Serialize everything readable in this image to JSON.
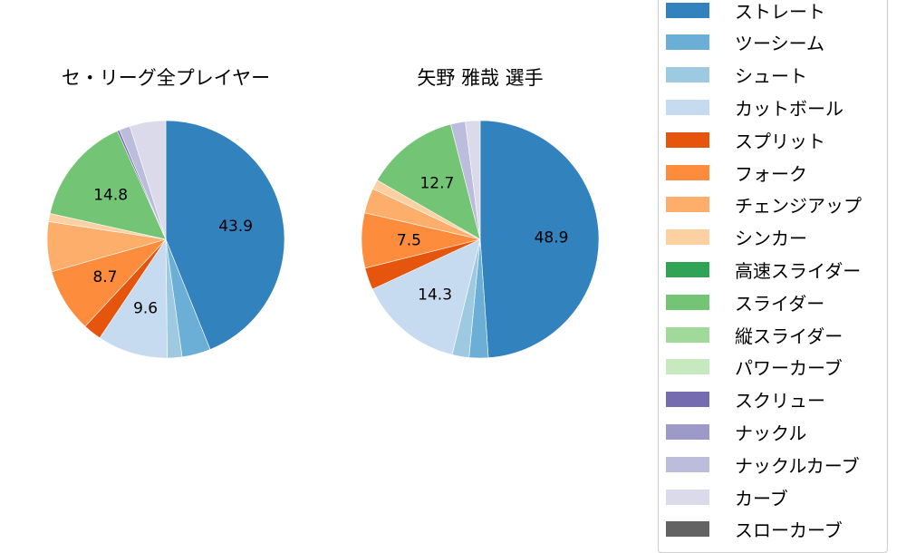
{
  "chart_data": [
    {
      "type": "pie",
      "title": "セ・リーグ全プレイヤー",
      "categories": [
        "ストレート",
        "ツーシーム",
        "シュート",
        "カットボール",
        "スプリット",
        "フォーク",
        "チェンジアップ",
        "シンカー",
        "スライダー",
        "スクリュー",
        "ナックルカーブ",
        "カーブ"
      ],
      "values": [
        43.9,
        3.9,
        2.0,
        9.6,
        2.5,
        8.7,
        6.8,
        1.1,
        14.8,
        0.3,
        1.5,
        4.9
      ],
      "labels_shown": {
        "ストレート": "43.9",
        "カットボール": "9.6",
        "フォーク": "8.7",
        "スライダー": "14.8"
      },
      "start_angle": 90,
      "direction": "clockwise"
    },
    {
      "type": "pie",
      "title": "矢野 雅哉  選手",
      "categories": [
        "ストレート",
        "ツーシーム",
        "シュート",
        "カットボール",
        "スプリット",
        "フォーク",
        "チェンジアップ",
        "シンカー",
        "スライダー",
        "ナックルカーブ",
        "カーブ"
      ],
      "values": [
        48.9,
        2.6,
        2.3,
        14.3,
        3.0,
        7.5,
        3.4,
        1.3,
        12.7,
        2.0,
        2.0
      ],
      "labels_shown": {
        "ストレート": "48.9",
        "カットボール": "14.3",
        "フォーク": "7.5",
        "スライダー": "12.7"
      },
      "start_angle": 90,
      "direction": "clockwise"
    }
  ],
  "titles": {
    "left": "セ・リーグ全プレイヤー",
    "right": "矢野 雅哉  選手"
  },
  "colors": {
    "ストレート": "#3182bd",
    "ツーシーム": "#6baed6",
    "シュート": "#9ecae1",
    "カットボール": "#c6dbef",
    "スプリット": "#e6550d",
    "フォーク": "#fd8d3c",
    "チェンジアップ": "#fdae6b",
    "シンカー": "#fdd0a2",
    "高速スライダー": "#31a354",
    "スライダー": "#74c476",
    "縦スライダー": "#a1d99b",
    "パワーカーブ": "#c7e9c0",
    "スクリュー": "#756bb1",
    "ナックル": "#9e9ac8",
    "ナックルカーブ": "#bcbddc",
    "カーブ": "#dadaeb",
    "スローカーブ": "#636363"
  },
  "legend": {
    "items": [
      {
        "label": "ストレート",
        "color": "#3182bd"
      },
      {
        "label": "ツーシーム",
        "color": "#6baed6"
      },
      {
        "label": "シュート",
        "color": "#9ecae1"
      },
      {
        "label": "カットボール",
        "color": "#c6dbef"
      },
      {
        "label": "スプリット",
        "color": "#e6550d"
      },
      {
        "label": "フォーク",
        "color": "#fd8d3c"
      },
      {
        "label": "チェンジアップ",
        "color": "#fdae6b"
      },
      {
        "label": "シンカー",
        "color": "#fdd0a2"
      },
      {
        "label": "高速スライダー",
        "color": "#31a354"
      },
      {
        "label": "スライダー",
        "color": "#74c476"
      },
      {
        "label": "縦スライダー",
        "color": "#a1d99b"
      },
      {
        "label": "パワーカーブ",
        "color": "#c7e9c0"
      },
      {
        "label": "スクリュー",
        "color": "#756bb1"
      },
      {
        "label": "ナックル",
        "color": "#9e9ac8"
      },
      {
        "label": "ナックルカーブ",
        "color": "#bcbddc"
      },
      {
        "label": "カーブ",
        "color": "#dadaeb"
      },
      {
        "label": "スローカーブ",
        "color": "#636363"
      }
    ]
  }
}
